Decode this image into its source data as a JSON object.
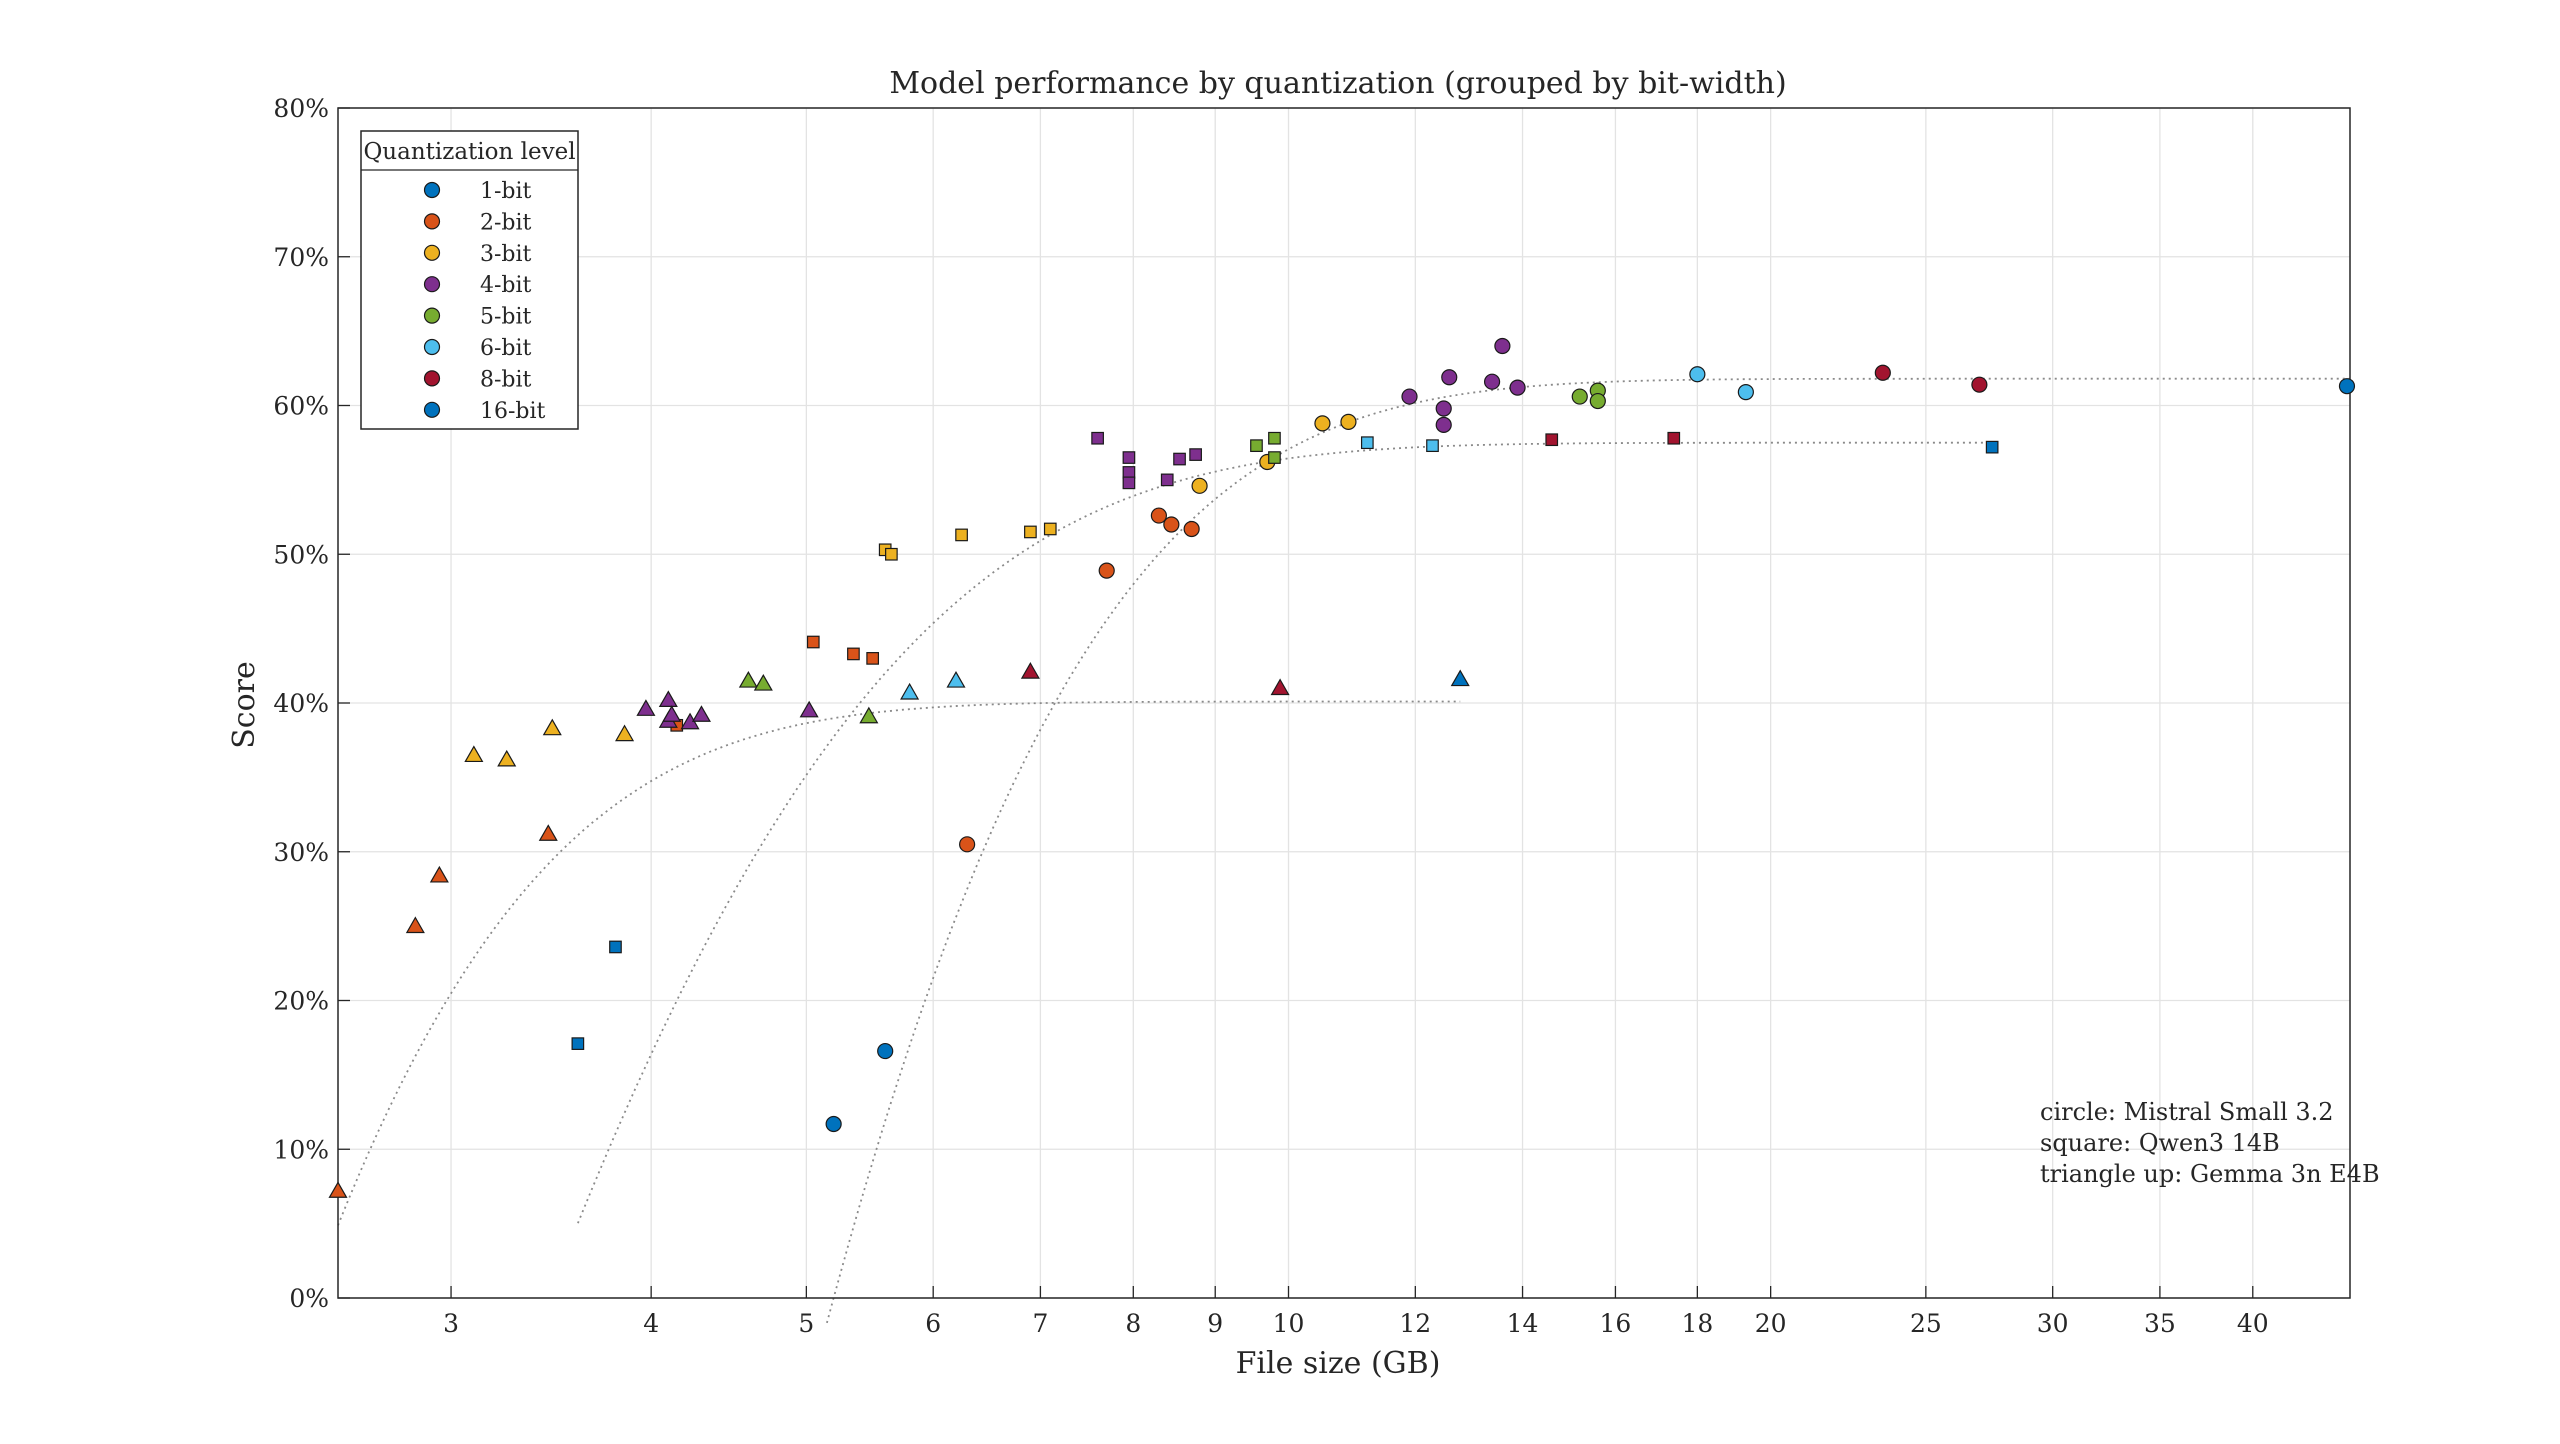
{
  "chart_data": {
    "type": "scatter",
    "title": "Model performance by quantization (grouped by bit-width)",
    "xlabel": "File size (GB)",
    "ylabel": "Score",
    "x_scale": "log",
    "xlim": [
      2.55,
      46
    ],
    "ylim": [
      0,
      80
    ],
    "x_ticks": [
      3,
      4,
      5,
      6,
      7,
      8,
      9,
      10,
      12,
      14,
      16,
      18,
      20,
      25,
      30,
      35,
      40
    ],
    "y_ticks": [
      0,
      10,
      20,
      30,
      40,
      50,
      60,
      70,
      80
    ],
    "y_tick_suffix": "%",
    "grid": true,
    "legend": {
      "title": "Quantization level",
      "placement": "top-left",
      "entries": [
        {
          "label": "1-bit",
          "color": "#0072BD"
        },
        {
          "label": "2-bit",
          "color": "#D95319"
        },
        {
          "label": "3-bit",
          "color": "#EDB120"
        },
        {
          "label": "4-bit",
          "color": "#7E2F8E"
        },
        {
          "label": "5-bit",
          "color": "#77AC30"
        },
        {
          "label": "6-bit",
          "color": "#4DBEEE"
        },
        {
          "label": "8-bit",
          "color": "#A2142F"
        },
        {
          "label": "16-bit",
          "color": "#0072BD"
        }
      ]
    },
    "annotation": [
      "circle: Mistral Small 3.2",
      "square: Qwen3 14B",
      "triangle up: Gemma 3n E4B"
    ],
    "series": [
      {
        "marker": "circle",
        "points": [
          {
            "x": 5.2,
            "y": 11.7,
            "bits": "1-bit"
          },
          {
            "x": 5.6,
            "y": 16.6,
            "bits": "1-bit"
          },
          {
            "x": 6.3,
            "y": 30.5,
            "bits": "2-bit"
          },
          {
            "x": 7.7,
            "y": 48.9,
            "bits": "2-bit"
          },
          {
            "x": 8.3,
            "y": 52.6,
            "bits": "2-bit"
          },
          {
            "x": 8.45,
            "y": 52.0,
            "bits": "2-bit"
          },
          {
            "x": 8.7,
            "y": 51.7,
            "bits": "2-bit"
          },
          {
            "x": 8.8,
            "y": 54.6,
            "bits": "3-bit"
          },
          {
            "x": 9.7,
            "y": 56.2,
            "bits": "3-bit"
          },
          {
            "x": 10.5,
            "y": 58.8,
            "bits": "3-bit"
          },
          {
            "x": 10.9,
            "y": 58.9,
            "bits": "3-bit"
          },
          {
            "x": 11.9,
            "y": 60.6,
            "bits": "4-bit"
          },
          {
            "x": 12.5,
            "y": 59.8,
            "bits": "4-bit"
          },
          {
            "x": 12.5,
            "y": 58.7,
            "bits": "4-bit"
          },
          {
            "x": 12.6,
            "y": 61.9,
            "bits": "4-bit"
          },
          {
            "x": 13.4,
            "y": 61.6,
            "bits": "4-bit"
          },
          {
            "x": 13.6,
            "y": 64.0,
            "bits": "4-bit"
          },
          {
            "x": 13.9,
            "y": 61.2,
            "bits": "4-bit"
          },
          {
            "x": 15.2,
            "y": 60.6,
            "bits": "5-bit"
          },
          {
            "x": 15.6,
            "y": 61.0,
            "bits": "5-bit"
          },
          {
            "x": 15.6,
            "y": 60.3,
            "bits": "5-bit"
          },
          {
            "x": 18.0,
            "y": 62.1,
            "bits": "6-bit"
          },
          {
            "x": 19.3,
            "y": 60.9,
            "bits": "6-bit"
          },
          {
            "x": 23.5,
            "y": 62.2,
            "bits": "8-bit"
          },
          {
            "x": 27.0,
            "y": 61.4,
            "bits": "8-bit"
          },
          {
            "x": 45.8,
            "y": 61.3,
            "bits": "16-bit"
          }
        ]
      },
      {
        "marker": "square",
        "points": [
          {
            "x": 3.6,
            "y": 17.1,
            "bits": "1-bit"
          },
          {
            "x": 3.8,
            "y": 23.6,
            "bits": "1-bit"
          },
          {
            "x": 4.15,
            "y": 38.5,
            "bits": "2-bit"
          },
          {
            "x": 5.05,
            "y": 44.1,
            "bits": "2-bit"
          },
          {
            "x": 5.35,
            "y": 43.3,
            "bits": "2-bit"
          },
          {
            "x": 5.5,
            "y": 43.0,
            "bits": "2-bit"
          },
          {
            "x": 5.6,
            "y": 50.3,
            "bits": "3-bit"
          },
          {
            "x": 5.65,
            "y": 50.0,
            "bits": "3-bit"
          },
          {
            "x": 6.25,
            "y": 51.3,
            "bits": "3-bit"
          },
          {
            "x": 6.9,
            "y": 51.5,
            "bits": "3-bit"
          },
          {
            "x": 7.1,
            "y": 51.7,
            "bits": "3-bit"
          },
          {
            "x": 7.6,
            "y": 57.8,
            "bits": "4-bit"
          },
          {
            "x": 7.95,
            "y": 56.5,
            "bits": "4-bit"
          },
          {
            "x": 7.95,
            "y": 55.5,
            "bits": "4-bit"
          },
          {
            "x": 7.95,
            "y": 54.8,
            "bits": "4-bit"
          },
          {
            "x": 8.4,
            "y": 55.0,
            "bits": "4-bit"
          },
          {
            "x": 8.55,
            "y": 56.4,
            "bits": "4-bit"
          },
          {
            "x": 8.75,
            "y": 56.7,
            "bits": "4-bit"
          },
          {
            "x": 9.55,
            "y": 57.3,
            "bits": "5-bit"
          },
          {
            "x": 9.8,
            "y": 57.8,
            "bits": "5-bit"
          },
          {
            "x": 9.8,
            "y": 56.5,
            "bits": "5-bit"
          },
          {
            "x": 11.2,
            "y": 57.5,
            "bits": "6-bit"
          },
          {
            "x": 12.3,
            "y": 57.3,
            "bits": "6-bit"
          },
          {
            "x": 14.6,
            "y": 57.7,
            "bits": "8-bit"
          },
          {
            "x": 17.4,
            "y": 57.8,
            "bits": "8-bit"
          },
          {
            "x": 27.5,
            "y": 57.2,
            "bits": "16-bit"
          }
        ]
      },
      {
        "marker": "triangle-up",
        "points": [
          {
            "x": 2.55,
            "y": 7.2,
            "bits": "2-bit"
          },
          {
            "x": 2.85,
            "y": 25.0,
            "bits": "2-bit"
          },
          {
            "x": 2.95,
            "y": 28.4,
            "bits": "2-bit"
          },
          {
            "x": 3.45,
            "y": 31.2,
            "bits": "2-bit"
          },
          {
            "x": 3.1,
            "y": 36.5,
            "bits": "3-bit"
          },
          {
            "x": 3.25,
            "y": 36.2,
            "bits": "3-bit"
          },
          {
            "x": 3.47,
            "y": 38.3,
            "bits": "3-bit"
          },
          {
            "x": 3.85,
            "y": 37.9,
            "bits": "3-bit"
          },
          {
            "x": 3.97,
            "y": 39.6,
            "bits": "4-bit"
          },
          {
            "x": 4.1,
            "y": 40.2,
            "bits": "4-bit"
          },
          {
            "x": 4.1,
            "y": 38.8,
            "bits": "4-bit"
          },
          {
            "x": 4.12,
            "y": 39.2,
            "bits": "4-bit"
          },
          {
            "x": 4.23,
            "y": 38.7,
            "bits": "4-bit"
          },
          {
            "x": 4.3,
            "y": 39.2,
            "bits": "4-bit"
          },
          {
            "x": 5.02,
            "y": 39.5,
            "bits": "4-bit"
          },
          {
            "x": 4.6,
            "y": 41.5,
            "bits": "5-bit"
          },
          {
            "x": 4.7,
            "y": 41.3,
            "bits": "5-bit"
          },
          {
            "x": 5.47,
            "y": 39.1,
            "bits": "5-bit"
          },
          {
            "x": 5.8,
            "y": 40.7,
            "bits": "6-bit"
          },
          {
            "x": 6.2,
            "y": 41.5,
            "bits": "6-bit"
          },
          {
            "x": 6.9,
            "y": 42.1,
            "bits": "8-bit"
          },
          {
            "x": 9.88,
            "y": 41.0,
            "bits": "8-bit"
          },
          {
            "x": 12.8,
            "y": 41.6,
            "bits": "16-bit"
          }
        ]
      }
    ],
    "trend_lines": [
      {
        "marker": "circle",
        "a": 61.8,
        "b": 0.535,
        "x0": 5.2,
        "x_range": [
          5.15,
          46
        ]
      },
      {
        "marker": "square",
        "a": 57.5,
        "b": 0.61,
        "x0": 3.45,
        "x_range": [
          3.6,
          27.5
        ]
      },
      {
        "marker": "triangle-up",
        "a": 40.1,
        "b": 1.3,
        "x0": 2.45,
        "x_range": [
          2.55,
          12.8
        ]
      }
    ]
  }
}
